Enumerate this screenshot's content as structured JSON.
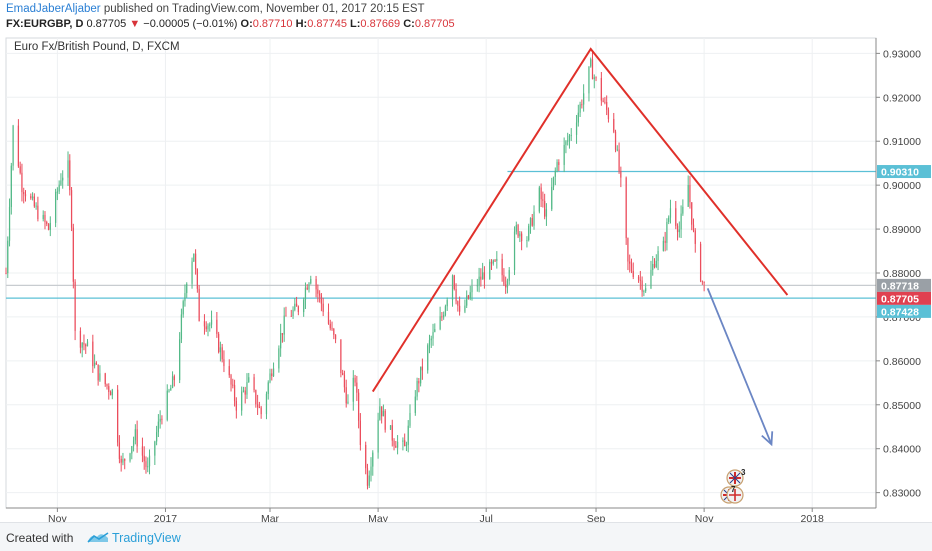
{
  "header": {
    "author": "EmadJaberAljaber",
    "published_text": "published on TradingView.com, November 01, 2017 20:15 EST",
    "symbol": "FX:EURGBP, D",
    "last": "0.87705",
    "change": "−0.00005 (−0.01%)",
    "o_label": "O:",
    "o_value": "0.87710",
    "h_label": "H:",
    "h_value": "0.87745",
    "l_label": "L:",
    "l_value": "0.87669",
    "c_label": "C:",
    "c_value": "0.87705"
  },
  "chart_data": {
    "type": "candlestick",
    "title": "Euro Fx/British Pound, D, FXCM",
    "y_ticks": [
      "0.93000",
      "0.92000",
      "0.91000",
      "0.90000",
      "0.89000",
      "0.88000",
      "0.87000",
      "0.86000",
      "0.85000",
      "0.84000",
      "0.83000"
    ],
    "y_tick_values": [
      0.93,
      0.92,
      0.91,
      0.9,
      0.89,
      0.88,
      0.87,
      0.86,
      0.85,
      0.84,
      0.83
    ],
    "ylim": [
      0.8265,
      0.9335
    ],
    "x_ticks": [
      "Nov",
      "2017",
      "Mar",
      "May",
      "Jul",
      "Sep",
      "Nov",
      "2018"
    ],
    "x_tick_dates": [
      "2016-11-01",
      "2017-01-01",
      "2017-03-01",
      "2017-05-01",
      "2017-07-01",
      "2017-09-01",
      "2017-11-01",
      "2018-01-01"
    ],
    "xlim": [
      "2016-10-03",
      "2018-02-06"
    ],
    "price_labels": [
      {
        "text": "0.90310",
        "value": 0.9031,
        "color": "#5bc0d6"
      },
      {
        "text": "0.87718",
        "value": 0.87718,
        "color": "#9aa0a6"
      },
      {
        "text": "0.87705",
        "value": 0.87705,
        "color": "#e04050"
      },
      {
        "text": "0.87428",
        "value": 0.87428,
        "color": "#5bc0d6"
      }
    ],
    "horizontal_lines": [
      {
        "value": 0.9031,
        "from": "2017-07-13",
        "color": "#5bc0d6"
      },
      {
        "value": 0.87718,
        "from": "2016-10-03",
        "color": "#c8ccd0"
      },
      {
        "value": 0.87428,
        "from": "2016-10-03",
        "color": "#5bc0d6"
      }
    ],
    "triangle": {
      "points": [
        [
          "2017-04-28",
          0.853
        ],
        [
          "2017-08-29",
          0.931
        ],
        [
          "2017-12-18",
          0.875
        ]
      ],
      "color": "#e0302a"
    },
    "forecast_arrow": {
      "from": [
        "2017-11-03",
        0.8765
      ],
      "to": [
        "2017-12-09",
        0.841
      ],
      "color": "#6b86c4"
    },
    "price_path": [
      [
        "2016-10-03",
        0.88
      ],
      [
        "2016-10-07",
        0.913
      ],
      [
        "2016-10-12",
        0.9
      ],
      [
        "2016-10-19",
        0.895
      ],
      [
        "2016-10-27",
        0.89
      ],
      [
        "2016-11-03",
        0.902
      ],
      [
        "2016-11-07",
        0.904
      ],
      [
        "2016-11-09",
        0.892
      ],
      [
        "2016-11-11",
        0.866
      ],
      [
        "2016-11-18",
        0.863
      ],
      [
        "2016-11-25",
        0.856
      ],
      [
        "2016-12-02",
        0.853
      ],
      [
        "2016-12-07",
        0.836
      ],
      [
        "2016-12-15",
        0.843
      ],
      [
        "2016-12-22",
        0.835
      ],
      [
        "2016-12-29",
        0.847
      ],
      [
        "2017-01-06",
        0.856
      ],
      [
        "2017-01-13",
        0.879
      ],
      [
        "2017-01-17",
        0.885
      ],
      [
        "2017-01-20",
        0.87
      ],
      [
        "2017-01-27",
        0.868
      ],
      [
        "2017-02-03",
        0.86
      ],
      [
        "2017-02-10",
        0.85
      ],
      [
        "2017-02-17",
        0.855
      ],
      [
        "2017-02-24",
        0.848
      ],
      [
        "2017-03-03",
        0.86
      ],
      [
        "2017-03-10",
        0.87
      ],
      [
        "2017-03-17",
        0.872
      ],
      [
        "2017-03-24",
        0.88
      ],
      [
        "2017-03-31",
        0.872
      ],
      [
        "2017-04-07",
        0.864
      ],
      [
        "2017-04-14",
        0.85
      ],
      [
        "2017-04-18",
        0.856
      ],
      [
        "2017-04-21",
        0.842
      ],
      [
        "2017-04-25",
        0.833
      ],
      [
        "2017-04-28",
        0.84
      ],
      [
        "2017-05-02",
        0.85
      ],
      [
        "2017-05-05",
        0.846
      ],
      [
        "2017-05-10",
        0.842
      ],
      [
        "2017-05-16",
        0.84
      ],
      [
        "2017-05-22",
        0.853
      ],
      [
        "2017-05-30",
        0.864
      ],
      [
        "2017-06-06",
        0.87
      ],
      [
        "2017-06-12",
        0.88
      ],
      [
        "2017-06-16",
        0.87
      ],
      [
        "2017-06-23",
        0.876
      ],
      [
        "2017-06-30",
        0.88
      ],
      [
        "2017-07-07",
        0.882
      ],
      [
        "2017-07-12",
        0.878
      ],
      [
        "2017-07-18",
        0.89
      ],
      [
        "2017-07-24",
        0.888
      ],
      [
        "2017-07-31",
        0.898
      ],
      [
        "2017-08-04",
        0.893
      ],
      [
        "2017-08-10",
        0.905
      ],
      [
        "2017-08-17",
        0.911
      ],
      [
        "2017-08-23",
        0.918
      ],
      [
        "2017-08-29",
        0.927
      ],
      [
        "2017-09-04",
        0.92
      ],
      [
        "2017-09-11",
        0.913
      ],
      [
        "2017-09-15",
        0.9
      ],
      [
        "2017-09-19",
        0.882
      ],
      [
        "2017-09-25",
        0.879
      ],
      [
        "2017-09-29",
        0.876
      ],
      [
        "2017-10-04",
        0.883
      ],
      [
        "2017-10-09",
        0.886
      ],
      [
        "2017-10-13",
        0.895
      ],
      [
        "2017-10-18",
        0.89
      ],
      [
        "2017-10-23",
        0.9
      ],
      [
        "2017-10-27",
        0.885
      ],
      [
        "2017-10-31",
        0.878
      ],
      [
        "2017-11-01",
        0.8771
      ]
    ]
  },
  "events": {
    "badge1": "3",
    "badge2": "7"
  },
  "footer": {
    "created_with": "Created with",
    "brand": "TradingView"
  }
}
